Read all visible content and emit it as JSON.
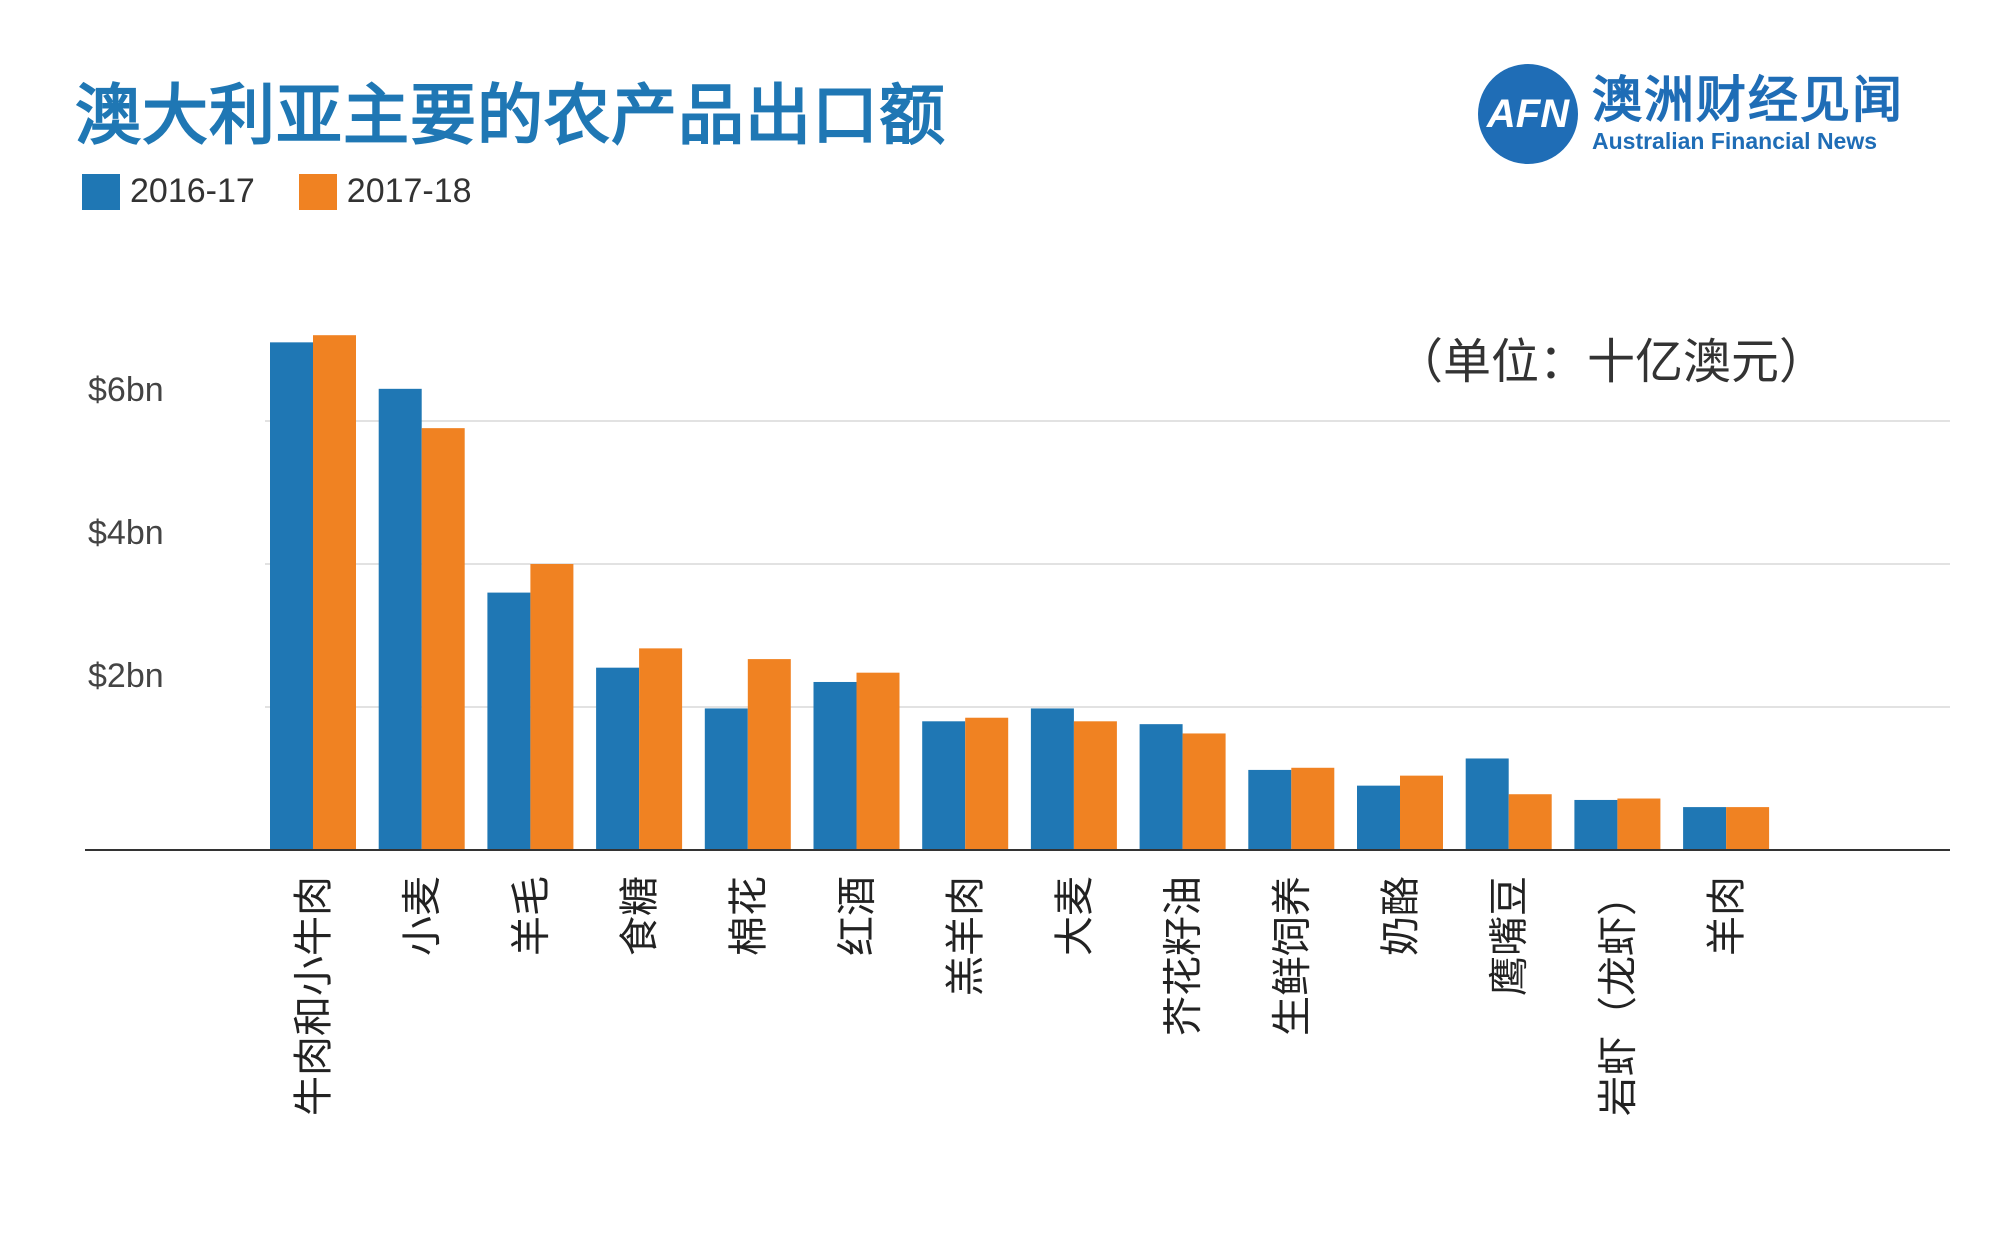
{
  "header": {
    "title": "澳大利亚主要的农产品出口额",
    "unit_note": "（单位：十亿澳元）"
  },
  "logo": {
    "mark": "AFN",
    "name_cn": "澳洲财经见闻",
    "name_en": "Australian Financial News"
  },
  "colors": {
    "series1": "#1f77b4",
    "series2": "#f08222",
    "title": "#1f77b4",
    "grid": "#d9d9d9"
  },
  "chart_data": {
    "type": "bar",
    "title": "澳大利亚主要的农产品出口额",
    "xlabel": "",
    "ylabel": "",
    "unit": "十亿澳元",
    "ylim": [
      0,
      7.5
    ],
    "yticks": [
      {
        "value": 2,
        "label": "$2bn"
      },
      {
        "value": 4,
        "label": "$4bn"
      },
      {
        "value": 6,
        "label": "$6bn"
      }
    ],
    "categories": [
      "牛肉和小牛肉",
      "小麦",
      "羊毛",
      "食糖",
      "棉花",
      "红酒",
      "羔羊肉",
      "大麦",
      "芥花籽油",
      "生鲜饲养",
      "奶酪",
      "鹰嘴豆",
      "岩虾（龙虾）",
      "羊肉"
    ],
    "series": [
      {
        "name": "2016-17",
        "values": [
          7.1,
          6.45,
          3.6,
          2.55,
          1.98,
          2.35,
          1.8,
          1.98,
          1.76,
          1.12,
          0.9,
          1.28,
          0.7,
          0.6
        ]
      },
      {
        "name": "2017-18",
        "values": [
          7.2,
          5.9,
          4.0,
          2.82,
          2.67,
          2.48,
          1.85,
          1.8,
          1.63,
          1.15,
          1.04,
          0.78,
          0.72,
          0.6
        ]
      }
    ],
    "legend_position": "top-left",
    "grid": true
  }
}
